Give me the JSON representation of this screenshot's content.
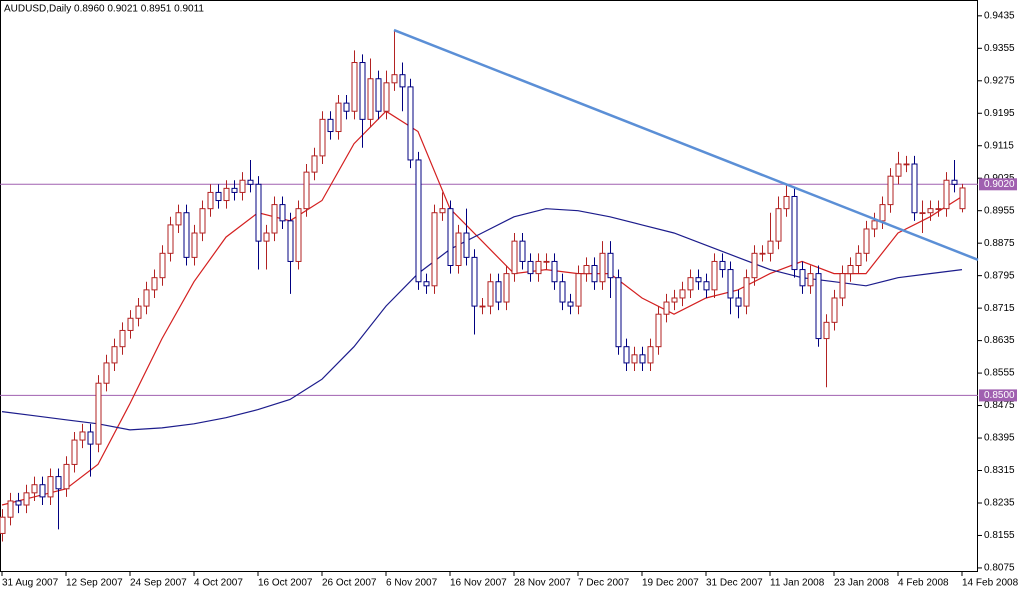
{
  "chart_data": {
    "type": "candlestick",
    "title": "AUDUSD,Daily  0.8960 0.9021 0.8951 0.9011",
    "categories": [
      "31 Aug 2007",
      null,
      null,
      null,
      null,
      null,
      null,
      null,
      "12 Sep 2007",
      null,
      null,
      null,
      null,
      null,
      null,
      null,
      "24 Sep 2007",
      null,
      null,
      null,
      null,
      null,
      null,
      null,
      "4 Oct 2007",
      null,
      null,
      null,
      null,
      null,
      null,
      null,
      "16 Oct 2007",
      null,
      null,
      null,
      null,
      null,
      null,
      null,
      "26 Oct 2007",
      null,
      null,
      null,
      null,
      null,
      null,
      null,
      "6 Nov 2007",
      null,
      null,
      null,
      null,
      null,
      null,
      null,
      "16 Nov 2007",
      null,
      null,
      null,
      null,
      null,
      null,
      null,
      "28 Nov 2007",
      null,
      null,
      null,
      null,
      null,
      null,
      null,
      "7 Dec 2007",
      null,
      null,
      null,
      null,
      null,
      null,
      null,
      "19 Dec 2007",
      null,
      null,
      null,
      null,
      null,
      null,
      null,
      "31 Dec 2007",
      null,
      null,
      null,
      null,
      null,
      null,
      null,
      "11 Jan 2008",
      null,
      null,
      null,
      null,
      null,
      null,
      null,
      "23 Jan 2008",
      null,
      null,
      null,
      null,
      null,
      null,
      null,
      "4 Feb 2008",
      null,
      null,
      null,
      null,
      null,
      null,
      null,
      "14 Feb 2008"
    ],
    "open": [
      0.816,
      0.82,
      0.824,
      0.823,
      0.826,
      0.828,
      0.825,
      0.83,
      0.827,
      0.833,
      0.839,
      0.841,
      0.838,
      0.853,
      0.858,
      0.862,
      0.866,
      0.869,
      0.872,
      0.876,
      0.879,
      0.885,
      0.892,
      0.895,
      0.884,
      0.89,
      0.896,
      0.9,
      0.898,
      0.901,
      0.9,
      0.903,
      0.902,
      0.888,
      0.89,
      0.897,
      0.893,
      0.883,
      0.896,
      0.905,
      0.909,
      0.918,
      0.915,
      0.922,
      0.92,
      0.932,
      0.918,
      0.928,
      0.92,
      0.927,
      0.929,
      0.926,
      0.908,
      0.878,
      0.877,
      0.895,
      0.896,
      0.882,
      0.89,
      0.884,
      0.872,
      0.872,
      0.878,
      0.873,
      0.88,
      0.888,
      0.883,
      0.88,
      0.883,
      0.883,
      0.878,
      0.873,
      0.872,
      0.88,
      0.882,
      0.878,
      0.885,
      0.879,
      0.862,
      0.858,
      0.86,
      0.858,
      0.862,
      0.87,
      0.873,
      0.874,
      0.876,
      0.879,
      0.878,
      0.876,
      0.883,
      0.881,
      0.874,
      0.872,
      0.879,
      0.885,
      0.885,
      0.888,
      0.896,
      0.899,
      0.881,
      0.877,
      0.88,
      0.864,
      0.868,
      0.874,
      0.88,
      0.882,
      0.885,
      0.891,
      0.893,
      0.897,
      0.904,
      0.907,
      0.907,
      0.895,
      0.895,
      0.896,
      0.896,
      0.903,
      0.896
    ],
    "high": [
      0.822,
      0.826,
      0.826,
      0.828,
      0.83,
      0.83,
      0.832,
      0.832,
      0.835,
      0.841,
      0.843,
      0.843,
      0.855,
      0.86,
      0.864,
      0.868,
      0.871,
      0.874,
      0.878,
      0.881,
      0.887,
      0.894,
      0.897,
      0.897,
      0.892,
      0.898,
      0.902,
      0.902,
      0.903,
      0.903,
      0.905,
      0.908,
      0.904,
      0.892,
      0.899,
      0.899,
      0.895,
      0.898,
      0.907,
      0.911,
      0.92,
      0.92,
      0.924,
      0.924,
      0.935,
      0.934,
      0.933,
      0.93,
      0.93,
      0.94,
      0.932,
      0.928,
      0.91,
      0.88,
      0.897,
      0.9,
      0.898,
      0.892,
      0.896,
      0.886,
      0.874,
      0.88,
      0.88,
      0.882,
      0.89,
      0.89,
      0.885,
      0.885,
      0.885,
      0.885,
      0.88,
      0.875,
      0.882,
      0.884,
      0.884,
      0.888,
      0.888,
      0.881,
      0.864,
      0.862,
      0.862,
      0.864,
      0.872,
      0.875,
      0.876,
      0.878,
      0.881,
      0.881,
      0.88,
      0.885,
      0.885,
      0.883,
      0.876,
      0.881,
      0.887,
      0.887,
      0.895,
      0.899,
      0.902,
      0.901,
      0.883,
      0.882,
      0.882,
      0.87,
      0.876,
      0.882,
      0.884,
      0.887,
      0.893,
      0.895,
      0.899,
      0.906,
      0.91,
      0.909,
      0.909,
      0.898,
      0.898,
      0.898,
      0.905,
      0.908,
      0.9021
    ],
    "low": [
      0.814,
      0.818,
      0.821,
      0.821,
      0.824,
      0.823,
      0.823,
      0.817,
      0.825,
      0.831,
      0.837,
      0.83,
      0.836,
      0.851,
      0.856,
      0.86,
      0.864,
      0.867,
      0.87,
      0.874,
      0.877,
      0.883,
      0.89,
      0.882,
      0.882,
      0.888,
      0.894,
      0.896,
      0.896,
      0.898,
      0.898,
      0.9,
      0.881,
      0.881,
      0.888,
      0.891,
      0.875,
      0.881,
      0.894,
      0.903,
      0.907,
      0.913,
      0.913,
      0.918,
      0.918,
      0.911,
      0.916,
      0.918,
      0.918,
      0.925,
      0.92,
      0.906,
      0.876,
      0.875,
      0.875,
      0.893,
      0.88,
      0.88,
      0.882,
      0.865,
      0.87,
      0.87,
      0.871,
      0.871,
      0.878,
      0.881,
      0.878,
      0.878,
      0.881,
      0.876,
      0.871,
      0.87,
      0.87,
      0.878,
      0.876,
      0.876,
      0.874,
      0.86,
      0.856,
      0.856,
      0.856,
      0.856,
      0.86,
      0.868,
      0.871,
      0.872,
      0.874,
      0.876,
      0.874,
      0.874,
      0.879,
      0.87,
      0.869,
      0.87,
      0.877,
      0.883,
      0.883,
      0.886,
      0.894,
      0.879,
      0.875,
      0.875,
      0.862,
      0.852,
      0.866,
      0.872,
      0.878,
      0.88,
      0.883,
      0.889,
      0.891,
      0.895,
      0.902,
      0.905,
      0.893,
      0.89,
      0.893,
      0.894,
      0.894,
      0.9,
      0.8951
    ],
    "close": [
      0.82,
      0.824,
      0.823,
      0.826,
      0.828,
      0.825,
      0.83,
      0.827,
      0.833,
      0.839,
      0.841,
      0.838,
      0.853,
      0.858,
      0.862,
      0.866,
      0.869,
      0.872,
      0.876,
      0.879,
      0.885,
      0.892,
      0.895,
      0.884,
      0.89,
      0.896,
      0.9,
      0.898,
      0.901,
      0.9,
      0.903,
      0.902,
      0.888,
      0.89,
      0.897,
      0.893,
      0.883,
      0.896,
      0.905,
      0.909,
      0.918,
      0.915,
      0.922,
      0.92,
      0.932,
      0.918,
      0.928,
      0.92,
      0.927,
      0.929,
      0.926,
      0.908,
      0.878,
      0.877,
      0.895,
      0.896,
      0.882,
      0.89,
      0.884,
      0.872,
      0.872,
      0.878,
      0.873,
      0.88,
      0.888,
      0.883,
      0.88,
      0.883,
      0.883,
      0.878,
      0.873,
      0.872,
      0.88,
      0.882,
      0.878,
      0.885,
      0.879,
      0.862,
      0.858,
      0.86,
      0.858,
      0.862,
      0.87,
      0.873,
      0.874,
      0.876,
      0.879,
      0.878,
      0.876,
      0.883,
      0.881,
      0.874,
      0.872,
      0.879,
      0.885,
      0.885,
      0.888,
      0.896,
      0.899,
      0.881,
      0.877,
      0.88,
      0.864,
      0.868,
      0.874,
      0.88,
      0.882,
      0.885,
      0.891,
      0.893,
      0.897,
      0.904,
      0.907,
      0.907,
      0.895,
      0.895,
      0.896,
      0.896,
      0.903,
      0.902,
      0.9011
    ],
    "up_color": "#b22222",
    "down_color": "#000080",
    "series": [
      {
        "color": "#d42020",
        "x": [
          0,
          4,
          8,
          12,
          16,
          20,
          24,
          28,
          32,
          36,
          40,
          44,
          48,
          52,
          56,
          60,
          64,
          68,
          72,
          76,
          80,
          84,
          88,
          92,
          96,
          100,
          104,
          108,
          112,
          116,
          120
        ],
        "values": [
          0.823,
          0.825,
          0.827,
          0.833,
          0.848,
          0.864,
          0.878,
          0.889,
          0.895,
          0.893,
          0.898,
          0.912,
          0.92,
          0.915,
          0.896,
          0.888,
          0.88,
          0.881,
          0.88,
          0.88,
          0.874,
          0.87,
          0.874,
          0.876,
          0.88,
          0.883,
          0.88,
          0.88,
          0.89,
          0.894,
          0.899
        ]
      },
      {
        "color": "#1c1c8c",
        "x": [
          0,
          4,
          8,
          12,
          16,
          20,
          24,
          28,
          32,
          36,
          40,
          44,
          48,
          52,
          56,
          60,
          64,
          68,
          72,
          76,
          80,
          84,
          88,
          92,
          96,
          100,
          104,
          108,
          112,
          116,
          120
        ],
        "values": [
          0.846,
          0.845,
          0.844,
          0.843,
          0.8415,
          0.842,
          0.843,
          0.8445,
          0.8465,
          0.849,
          0.854,
          0.862,
          0.872,
          0.88,
          0.886,
          0.89,
          0.894,
          0.896,
          0.8955,
          0.894,
          0.892,
          0.89,
          0.887,
          0.884,
          0.881,
          0.879,
          0.878,
          0.877,
          0.879,
          0.88,
          0.881
        ]
      }
    ],
    "trendline": {
      "color": "#5b8fd6",
      "x": [
        49,
        122
      ],
      "values": [
        0.94,
        0.8834
      ]
    },
    "levels": [
      {
        "value": 0.902,
        "label": "0.9020"
      },
      {
        "value": 0.85,
        "label": "0.8500"
      }
    ],
    "level_color": "#a060b0",
    "ylim": [
      0.8065,
      0.9474
    ],
    "yticks": [
      0.9435,
      0.9355,
      0.9275,
      0.9195,
      0.9115,
      0.9035,
      0.8955,
      0.8875,
      0.8795,
      0.8715,
      0.8635,
      0.8555,
      0.8475,
      0.8395,
      0.8315,
      0.8235,
      0.8155,
      0.8075
    ]
  }
}
